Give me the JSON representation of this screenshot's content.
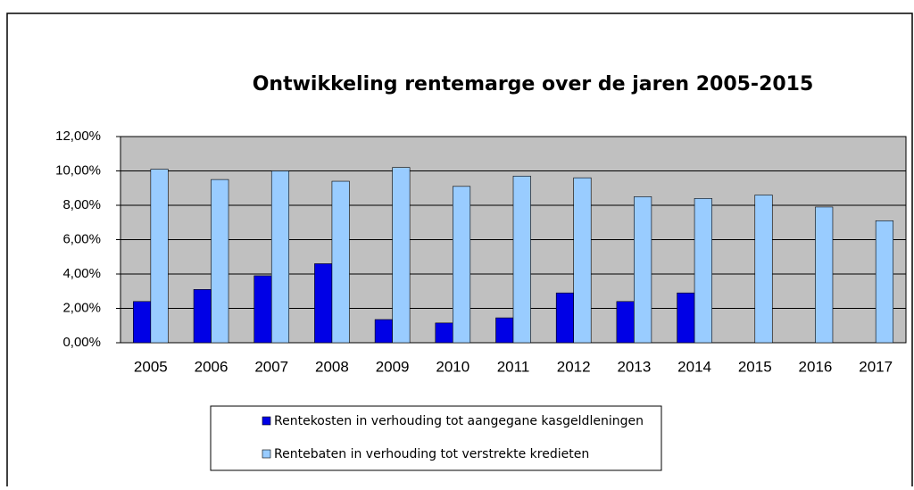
{
  "chart_data": {
    "type": "bar",
    "title": "Ontwikkeling  rentemarge over de jaren 2005-2015",
    "categories": [
      "2005",
      "2006",
      "2007",
      "2008",
      "2009",
      "2010",
      "2011",
      "2012",
      "2013",
      "2014",
      "2015",
      "2016",
      "2017"
    ],
    "series": [
      {
        "name": "Rentekosten in verhouding tot aangegane kasgeldleningen",
        "color": "#0000e6",
        "values": [
          2.4,
          3.1,
          3.9,
          4.6,
          1.35,
          1.15,
          1.45,
          2.9,
          2.4,
          2.9,
          null,
          null,
          null
        ]
      },
      {
        "name": "Rentebaten in verhouding tot verstrekte kredieten",
        "color": "#99ccff",
        "values": [
          10.1,
          9.5,
          10.0,
          9.4,
          10.2,
          9.1,
          9.7,
          9.6,
          8.5,
          8.4,
          8.6,
          7.9,
          7.1
        ]
      }
    ],
    "ylim": [
      0,
      12
    ],
    "yticks": [
      {
        "value": 0,
        "label": "0,00%"
      },
      {
        "value": 2,
        "label": "2,00%"
      },
      {
        "value": 4,
        "label": "4,00%"
      },
      {
        "value": 6,
        "label": "6,00%"
      },
      {
        "value": 8,
        "label": "8,00%"
      },
      {
        "value": 10,
        "label": "10,00%"
      },
      {
        "value": 12,
        "label": "12,00%"
      }
    ],
    "grid": true
  }
}
